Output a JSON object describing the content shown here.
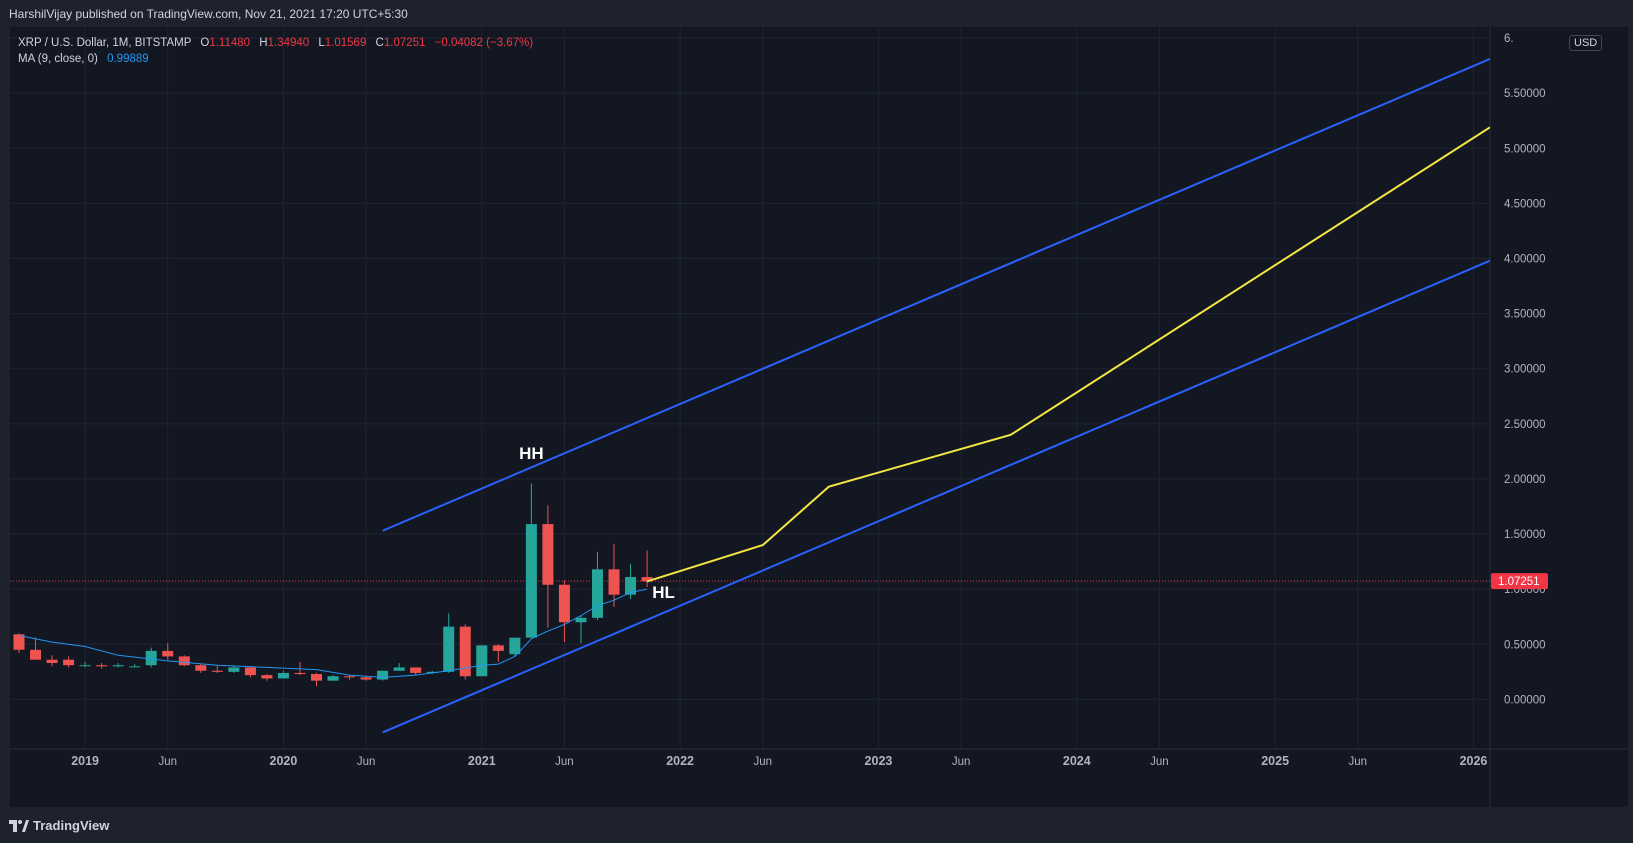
{
  "header": {
    "publisher_line": "HarshilVijay published on TradingView.com, Nov 21, 2021 17:20 UTC+5:30"
  },
  "legend": {
    "symbol": "XRP / U.S. Dollar, 1M, BITSTAMP",
    "open_label": "O",
    "open_value": "1.11480",
    "high_label": "H",
    "high_value": "1.34940",
    "low_label": "L",
    "low_value": "1.01569",
    "close_label": "C",
    "close_value": "1.07251",
    "change": "−0.04082 (−3.67%)",
    "ma_label": "MA (9, close, 0)",
    "ma_value": "0.99889"
  },
  "currency_badge": "USD",
  "price_tag": "1.07251",
  "footer": {
    "brand": "TradingView",
    "logo_icon": "tradingview-logo-icon"
  },
  "colors": {
    "background": "#131722",
    "up": "#26a69a",
    "down": "#ef5350",
    "ma": "#2196f3",
    "channel": "#2962ff",
    "projection": "#f5e642",
    "price_line": "#f23645"
  },
  "chart_data": {
    "type": "candlestick",
    "symbol": "XRP / U.S. Dollar",
    "interval": "1M",
    "exchange": "BITSTAMP",
    "y_ticks": [
      0,
      0.5,
      1.0,
      1.5,
      2.0,
      2.5,
      3.0,
      3.5,
      4.0,
      4.5,
      5.0,
      5.5,
      6.0
    ],
    "y_tick_labels": [
      "0.00000",
      "0.50000",
      "1.00000",
      "1.50000",
      "2.00000",
      "2.50000",
      "3.00000",
      "3.50000",
      "4.00000",
      "4.50000",
      "5.00000",
      "5.50000",
      "6."
    ],
    "ylim": [
      -0.45,
      6.1
    ],
    "xlim": [
      "2018-09",
      "2026-02"
    ],
    "x_ticks": [
      {
        "date": "2019-01",
        "label": "2019"
      },
      {
        "date": "2019-06",
        "label": "Jun"
      },
      {
        "date": "2020-01",
        "label": "2020"
      },
      {
        "date": "2020-06",
        "label": "Jun"
      },
      {
        "date": "2021-01",
        "label": "2021"
      },
      {
        "date": "2021-06",
        "label": "Jun"
      },
      {
        "date": "2022-01",
        "label": "2022"
      },
      {
        "date": "2022-06",
        "label": "Jun"
      },
      {
        "date": "2023-01",
        "label": "2023"
      },
      {
        "date": "2023-06",
        "label": "Jun"
      },
      {
        "date": "2024-01",
        "label": "2024"
      },
      {
        "date": "2024-06",
        "label": "Jun"
      },
      {
        "date": "2025-01",
        "label": "2025"
      },
      {
        "date": "2025-06",
        "label": "Jun"
      },
      {
        "date": "2026-01",
        "label": "2026"
      }
    ],
    "candles": [
      {
        "date": "2018-09",
        "o": 0.59,
        "h": 0.6,
        "l": 0.42,
        "c": 0.45
      },
      {
        "date": "2018-10",
        "o": 0.45,
        "h": 0.56,
        "l": 0.36,
        "c": 0.36
      },
      {
        "date": "2018-11",
        "o": 0.36,
        "h": 0.4,
        "l": 0.3,
        "c": 0.33
      },
      {
        "date": "2018-12",
        "o": 0.36,
        "h": 0.39,
        "l": 0.29,
        "c": 0.31
      },
      {
        "date": "2019-01",
        "o": 0.31,
        "h": 0.34,
        "l": 0.29,
        "c": 0.31
      },
      {
        "date": "2019-02",
        "o": 0.31,
        "h": 0.33,
        "l": 0.28,
        "c": 0.3
      },
      {
        "date": "2019-03",
        "o": 0.3,
        "h": 0.33,
        "l": 0.29,
        "c": 0.31
      },
      {
        "date": "2019-04",
        "o": 0.3,
        "h": 0.32,
        "l": 0.29,
        "c": 0.3
      },
      {
        "date": "2019-05",
        "o": 0.31,
        "h": 0.47,
        "l": 0.29,
        "c": 0.44
      },
      {
        "date": "2019-06",
        "o": 0.44,
        "h": 0.51,
        "l": 0.36,
        "c": 0.39
      },
      {
        "date": "2019-07",
        "o": 0.39,
        "h": 0.4,
        "l": 0.3,
        "c": 0.31
      },
      {
        "date": "2019-08",
        "o": 0.31,
        "h": 0.32,
        "l": 0.24,
        "c": 0.26
      },
      {
        "date": "2019-09",
        "o": 0.26,
        "h": 0.31,
        "l": 0.24,
        "c": 0.25
      },
      {
        "date": "2019-10",
        "o": 0.25,
        "h": 0.31,
        "l": 0.24,
        "c": 0.29
      },
      {
        "date": "2019-11",
        "o": 0.29,
        "h": 0.3,
        "l": 0.2,
        "c": 0.22
      },
      {
        "date": "2019-12",
        "o": 0.22,
        "h": 0.23,
        "l": 0.17,
        "c": 0.19
      },
      {
        "date": "2020-01",
        "o": 0.19,
        "h": 0.26,
        "l": 0.19,
        "c": 0.24
      },
      {
        "date": "2020-02",
        "o": 0.24,
        "h": 0.34,
        "l": 0.22,
        "c": 0.23
      },
      {
        "date": "2020-03",
        "o": 0.23,
        "h": 0.24,
        "l": 0.12,
        "c": 0.17
      },
      {
        "date": "2020-04",
        "o": 0.17,
        "h": 0.22,
        "l": 0.17,
        "c": 0.21
      },
      {
        "date": "2020-05",
        "o": 0.21,
        "h": 0.22,
        "l": 0.18,
        "c": 0.2
      },
      {
        "date": "2020-06",
        "o": 0.2,
        "h": 0.21,
        "l": 0.17,
        "c": 0.18
      },
      {
        "date": "2020-07",
        "o": 0.18,
        "h": 0.26,
        "l": 0.17,
        "c": 0.26
      },
      {
        "date": "2020-08",
        "o": 0.26,
        "h": 0.33,
        "l": 0.26,
        "c": 0.29
      },
      {
        "date": "2020-09",
        "o": 0.29,
        "h": 0.29,
        "l": 0.22,
        "c": 0.24
      },
      {
        "date": "2020-10",
        "o": 0.24,
        "h": 0.26,
        "l": 0.23,
        "c": 0.25
      },
      {
        "date": "2020-11",
        "o": 0.25,
        "h": 0.78,
        "l": 0.24,
        "c": 0.66
      },
      {
        "date": "2020-12",
        "o": 0.66,
        "h": 0.68,
        "l": 0.18,
        "c": 0.21
      },
      {
        "date": "2021-01",
        "o": 0.21,
        "h": 0.49,
        "l": 0.21,
        "c": 0.49
      },
      {
        "date": "2021-02",
        "o": 0.49,
        "h": 0.5,
        "l": 0.34,
        "c": 0.44
      },
      {
        "date": "2021-03",
        "o": 0.41,
        "h": 0.55,
        "l": 0.39,
        "c": 0.56
      },
      {
        "date": "2021-04",
        "o": 0.56,
        "h": 1.96,
        "l": 0.56,
        "c": 1.59
      },
      {
        "date": "2021-05",
        "o": 1.59,
        "h": 1.76,
        "l": 0.65,
        "c": 1.04
      },
      {
        "date": "2021-06",
        "o": 1.04,
        "h": 1.08,
        "l": 0.52,
        "c": 0.7
      },
      {
        "date": "2021-07",
        "o": 0.7,
        "h": 0.76,
        "l": 0.51,
        "c": 0.74
      },
      {
        "date": "2021-08",
        "o": 0.74,
        "h": 1.34,
        "l": 0.72,
        "c": 1.18
      },
      {
        "date": "2021-09",
        "o": 1.18,
        "h": 1.41,
        "l": 0.84,
        "c": 0.95
      },
      {
        "date": "2021-10",
        "o": 0.95,
        "h": 1.23,
        "l": 0.91,
        "c": 1.11
      },
      {
        "date": "2021-11",
        "o": 1.11,
        "h": 1.35,
        "l": 1.02,
        "c": 1.07
      }
    ],
    "ma_series": {
      "name": "MA (9, close, 0)",
      "values": [
        [
          "2018-09",
          0.58
        ],
        [
          "2018-11",
          0.52
        ],
        [
          "2019-01",
          0.48
        ],
        [
          "2019-03",
          0.4
        ],
        [
          "2019-06",
          0.35
        ],
        [
          "2019-09",
          0.31
        ],
        [
          "2019-12",
          0.29
        ],
        [
          "2020-03",
          0.27
        ],
        [
          "2020-05",
          0.22
        ],
        [
          "2020-07",
          0.2
        ],
        [
          "2020-09",
          0.22
        ],
        [
          "2020-11",
          0.26
        ],
        [
          "2021-01",
          0.31
        ],
        [
          "2021-02",
          0.32
        ],
        [
          "2021-03",
          0.39
        ],
        [
          "2021-04",
          0.55
        ],
        [
          "2021-05",
          0.62
        ],
        [
          "2021-06",
          0.68
        ],
        [
          "2021-07",
          0.76
        ],
        [
          "2021-08",
          0.85
        ],
        [
          "2021-09",
          0.9
        ],
        [
          "2021-10",
          0.97
        ],
        [
          "2021-11",
          1.0
        ]
      ]
    },
    "upper_channel": [
      [
        "2020-07",
        1.53
      ],
      [
        "2026-02",
        5.81
      ]
    ],
    "lower_channel": [
      [
        "2020-07",
        -0.3
      ],
      [
        "2026-02",
        3.98
      ]
    ],
    "projection": [
      [
        "2021-11",
        1.07
      ],
      [
        "2022-06",
        1.4
      ],
      [
        "2022-10",
        1.93
      ],
      [
        "2023-09",
        2.4
      ],
      [
        "2026-02",
        5.19
      ]
    ],
    "last_price": 1.07251,
    "annotations": [
      {
        "text": "HH",
        "date": "2021-04",
        "value": 2.18
      },
      {
        "text": "HL",
        "date": "2021-12",
        "value": 0.92
      }
    ]
  }
}
